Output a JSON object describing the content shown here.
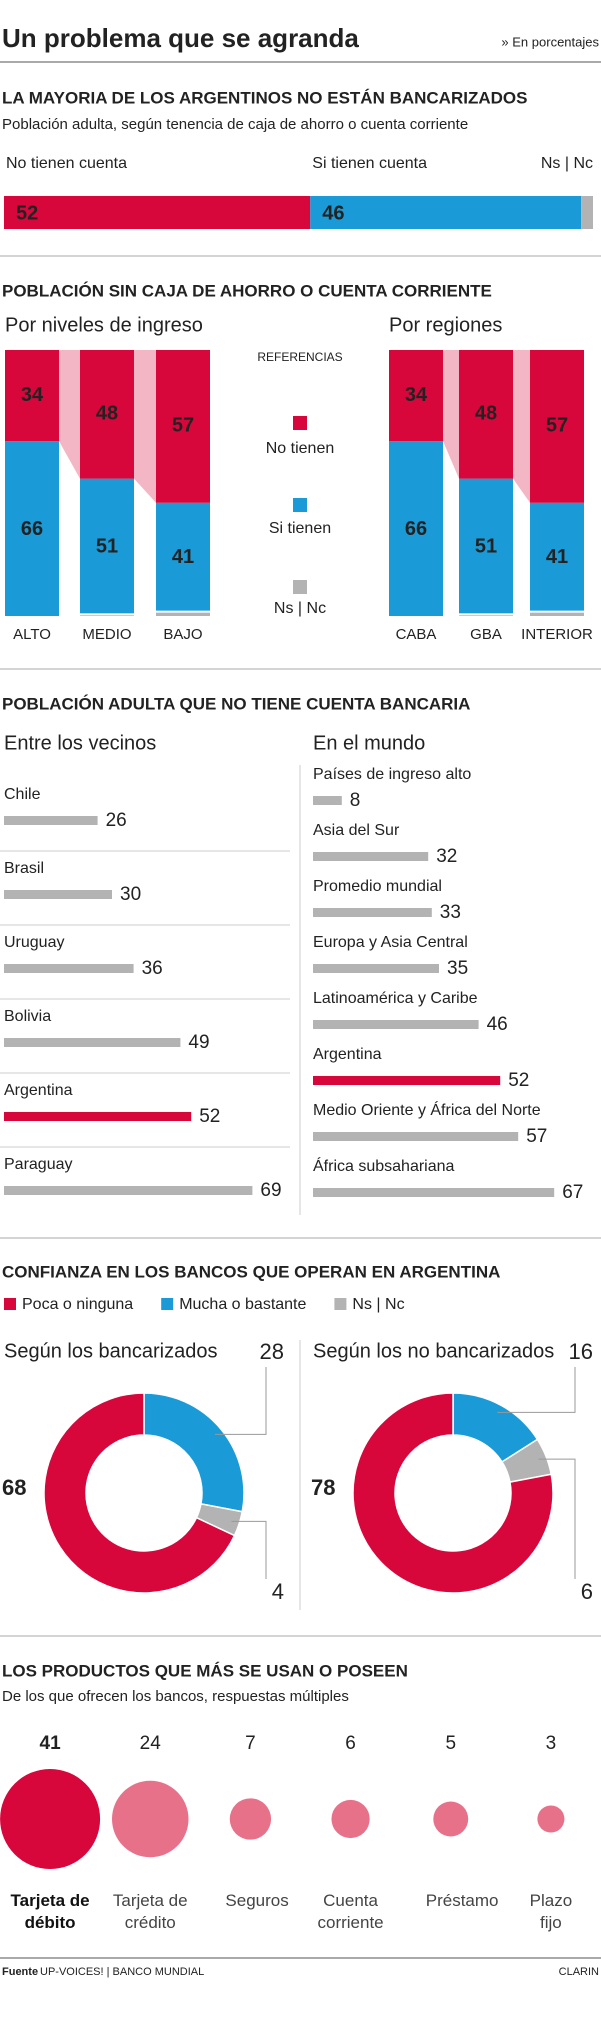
{
  "header": {
    "title": "Un problema que se agranda",
    "note": "» En porcentajes"
  },
  "chart_data": [
    {
      "type": "stacked-bar",
      "title": "LA MAYORIA DE LOS ARGENTINOS NO ESTÁN BANCARIZADOS",
      "subtitle": "Población adulta, según tenencia de caja de ahorro o cuenta corriente",
      "xlim": [
        0,
        100
      ],
      "series": [
        {
          "name": "No tienen cuenta",
          "color": "#d7063b",
          "values": [
            52
          ]
        },
        {
          "name": "Si tienen cuenta",
          "color": "#1a9ad6",
          "values": [
            46
          ]
        },
        {
          "name": "Ns | Nc",
          "color": "#b3b3b3",
          "values": [
            2
          ]
        }
      ]
    },
    {
      "type": "stacked-column",
      "title": "POBLACIÓN SIN CAJA DE AHORRO O CUENTA CORRIENTE",
      "subtitle": "Por niveles de ingreso",
      "legend_title": "REFERENCIAS",
      "ylim": [
        0,
        100
      ],
      "categories": [
        "ALTO",
        "MEDIO",
        "BAJO"
      ],
      "series": [
        {
          "name": "No tienen",
          "color": "#d7063b",
          "values": [
            34,
            48,
            57
          ]
        },
        {
          "name": "Si tienen",
          "color": "#1a9ad6",
          "values": [
            66,
            51,
            41
          ]
        },
        {
          "name": "Ns | Nc",
          "color": "#b3b3b3",
          "values": [
            0,
            1,
            2
          ]
        }
      ]
    },
    {
      "type": "stacked-column",
      "subtitle": "Por regiones",
      "ylim": [
        0,
        100
      ],
      "categories": [
        "CABA",
        "GBA",
        "INTERIOR"
      ],
      "series": [
        {
          "color": "#d7063b",
          "values": [
            34,
            48,
            57
          ]
        },
        {
          "color": "#1a9ad6",
          "values": [
            66,
            51,
            41
          ]
        },
        {
          "color": "#b3b3b3",
          "values": [
            0,
            1,
            2
          ]
        }
      ]
    },
    {
      "type": "hbar",
      "title": "POBLACIÓN ADULTA QUE NO TIENE CUENTA BANCARIA",
      "subtitle": "Entre los vecinos",
      "xlim": [
        0,
        75
      ],
      "categories": [
        "Chile",
        "Brasil",
        "Uruguay",
        "Bolivia",
        "Argentina",
        "Paraguay"
      ],
      "values": [
        26,
        30,
        36,
        49,
        52,
        69
      ],
      "colors": [
        "#b3b3b3",
        "#b3b3b3",
        "#b3b3b3",
        "#b3b3b3",
        "#d7063b",
        "#b3b3b3"
      ]
    },
    {
      "type": "hbar",
      "subtitle": "En el mundo",
      "xlim": [
        0,
        75
      ],
      "categories": [
        "Países de ingreso alto",
        "Asia del Sur",
        "Promedio mundial",
        "Europa y Asia Central",
        "Latinoamérica y Caribe",
        "Argentina",
        "Medio Oriente y África del Norte",
        "África subsahariana"
      ],
      "values": [
        8,
        32,
        33,
        35,
        46,
        52,
        57,
        67
      ],
      "colors": [
        "#b3b3b3",
        "#b3b3b3",
        "#b3b3b3",
        "#b3b3b3",
        "#b3b3b3",
        "#d7063b",
        "#b3b3b3",
        "#b3b3b3"
      ]
    },
    {
      "type": "donut",
      "title": "CONFIANZA EN LOS BANCOS QUE OPERAN EN ARGENTINA",
      "subtitle": "Según los bancarizados",
      "categories": [
        "Poca o ninguna",
        "Mucha o bastante",
        "Ns | Nc"
      ],
      "values": [
        68,
        28,
        4
      ],
      "colors": [
        "#d7063b",
        "#1a9ad6",
        "#b3b3b3"
      ]
    },
    {
      "type": "donut",
      "subtitle": "Según los no bancarizados",
      "values": [
        78,
        16,
        6
      ],
      "colors": [
        "#d7063b",
        "#1a9ad6",
        "#b3b3b3"
      ]
    },
    {
      "type": "bubble",
      "title": "LOS PRODUCTOS QUE MÁS SE USAN O POSEEN",
      "subtitle": "De los que ofrecen los bancos, respuestas múltiples",
      "categories": [
        "Tarjeta de débito",
        "Tarjeta de crédito",
        "Seguros",
        "Cuenta corriente",
        "Préstamo",
        "Plazo fijo"
      ],
      "values": [
        41,
        24,
        7,
        6,
        5,
        3
      ],
      "colors": [
        "#d7063b",
        "#e8718a",
        "#e8718a",
        "#e8718a",
        "#e8718a",
        "#e8718a"
      ]
    }
  ],
  "footer": {
    "source_label": "Fuente",
    "source": "UP-VOICES! | BANCO MUNDIAL",
    "brand": "CLARIN"
  }
}
